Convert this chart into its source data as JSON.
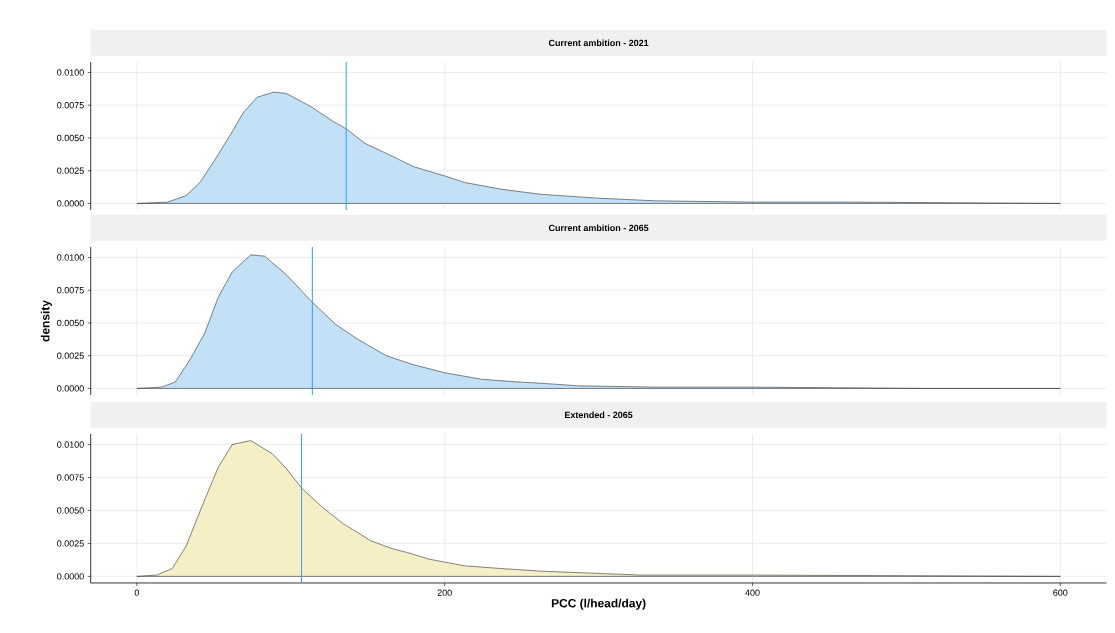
{
  "chart_data": [
    {
      "type": "area",
      "title": "Current ambition - 2021",
      "x": [
        0,
        20,
        32,
        41,
        50,
        60,
        69,
        78,
        89,
        97,
        113,
        127,
        136,
        148,
        166,
        180,
        200,
        213,
        236,
        262,
        300,
        337,
        400,
        462,
        600
      ],
      "series": [
        {
          "color": "#c2e1f7",
          "values": [
            0,
            0.0001,
            0.0006,
            0.0016,
            0.0032,
            0.0051,
            0.0069,
            0.0081,
            0.0085,
            0.0084,
            0.0074,
            0.0063,
            0.0057,
            0.0046,
            0.0036,
            0.0028,
            0.0021,
            0.0016,
            0.0011,
            0.0007,
            0.0004,
            0.0002,
            0.0001,
            0.0001,
            0
          ]
        }
      ],
      "xlim": [
        -30,
        630
      ],
      "xticks": [
        0,
        200,
        400,
        600
      ],
      "ylim": [
        -0.0005,
        0.0108
      ],
      "yticks": [
        {
          "value": 0,
          "label": "0.0000"
        },
        {
          "value": 0.0025,
          "label": "0.0025"
        },
        {
          "value": 0.005,
          "label": "0.0050"
        },
        {
          "value": 0.0075,
          "label": "0.0075"
        },
        {
          "value": 0.01,
          "label": "0.0100"
        }
      ],
      "grid": true,
      "tick_labels": "y",
      "ref_lines": [
        {
          "axis": "x",
          "value": 136,
          "color": "#2ea3ee"
        }
      ]
    },
    {
      "type": "area",
      "title": "Current ambition - 2065",
      "ylabel": "density",
      "x": [
        0,
        16,
        25,
        34,
        44,
        53,
        62,
        74,
        83,
        97,
        113,
        129,
        143,
        162,
        180,
        200,
        224,
        247,
        262,
        287,
        337,
        400,
        512,
        600
      ],
      "series": [
        {
          "color": "#c2e1f7",
          "values": [
            0,
            0.0001,
            0.0005,
            0.0021,
            0.0042,
            0.007,
            0.0089,
            0.0102,
            0.0101,
            0.0087,
            0.0067,
            0.0049,
            0.0038,
            0.0025,
            0.0018,
            0.0012,
            0.0007,
            0.0005,
            0.0004,
            0.0002,
            0.0001,
            0.0001,
            0,
            0
          ]
        }
      ],
      "xlim": [
        -30,
        630
      ],
      "xticks": [
        0,
        200,
        400,
        600
      ],
      "ylim": [
        -0.0005,
        0.0108
      ],
      "yticks": [
        {
          "value": 0,
          "label": "0.0000"
        },
        {
          "value": 0.0025,
          "label": "0.0025"
        },
        {
          "value": 0.005,
          "label": "0.0050"
        },
        {
          "value": 0.0075,
          "label": "0.0075"
        },
        {
          "value": 0.01,
          "label": "0.0100"
        }
      ],
      "grid": true,
      "tick_labels": "y",
      "ref_lines": [
        {
          "axis": "x",
          "value": 114,
          "color": "#2ea3ee"
        }
      ]
    },
    {
      "type": "area",
      "title": "Extended - 2065",
      "xlabel": "PCC (l/head/day)",
      "x": [
        0,
        13,
        23,
        32,
        44,
        53,
        62,
        74,
        88,
        97,
        107,
        120,
        134,
        152,
        166,
        176,
        190,
        213,
        236,
        262,
        327,
        400,
        600
      ],
      "series": [
        {
          "color": "#f4efc5",
          "values": [
            0,
            0.0001,
            0.0006,
            0.0023,
            0.0058,
            0.0083,
            0.01,
            0.0103,
            0.0093,
            0.0082,
            0.0067,
            0.0053,
            0.004,
            0.0027,
            0.0021,
            0.0018,
            0.0013,
            0.0008,
            0.0006,
            0.0004,
            0.0001,
            0.0001,
            0
          ]
        }
      ],
      "xlim": [
        -30,
        630
      ],
      "xticks": [
        0,
        200,
        400,
        600
      ],
      "ylim": [
        -0.0005,
        0.0108
      ],
      "yticks": [
        {
          "value": 0,
          "label": "0.0000"
        },
        {
          "value": 0.0025,
          "label": "0.0025"
        },
        {
          "value": 0.005,
          "label": "0.0050"
        },
        {
          "value": 0.0075,
          "label": "0.0075"
        },
        {
          "value": 0.01,
          "label": "0.0100"
        }
      ],
      "grid": true,
      "ref_lines": [
        {
          "axis": "x",
          "value": 107,
          "color": "#2ea3ee"
        }
      ]
    }
  ]
}
